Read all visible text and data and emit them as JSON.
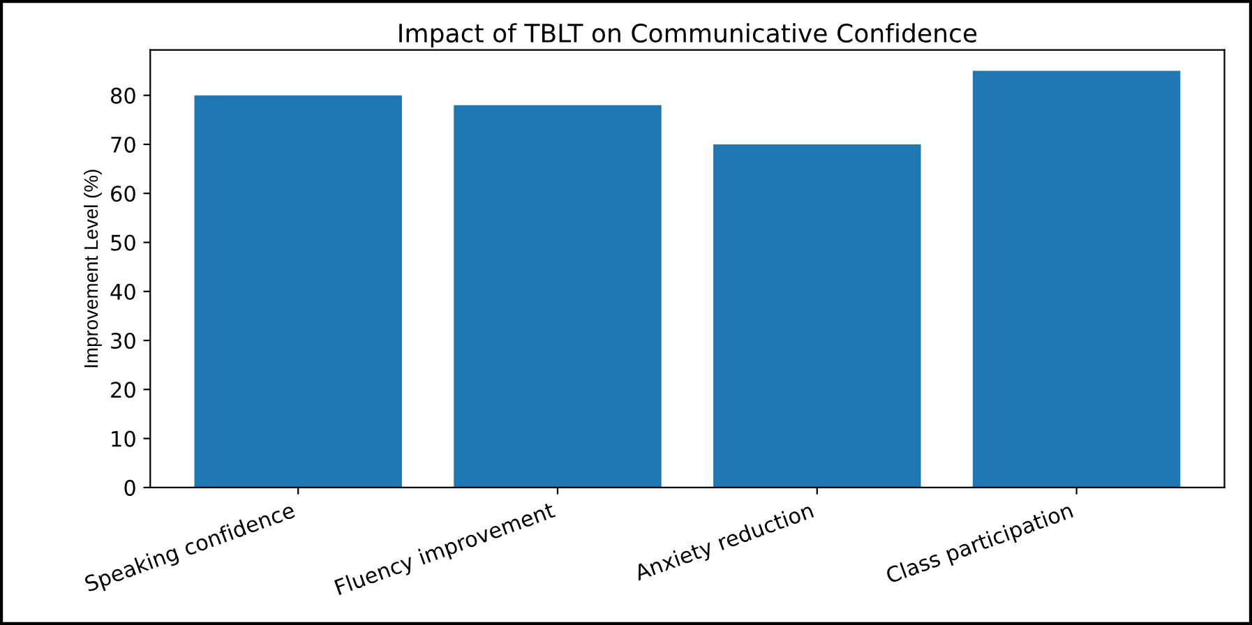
{
  "chart_data": {
    "type": "bar",
    "title": "Impact of TBLT on Communicative Confidence",
    "ylabel": "Improvement Level (%)",
    "categories": [
      "Speaking confidence",
      "Fluency improvement",
      "Anxiety reduction",
      "Class participation"
    ],
    "values": [
      80,
      78,
      70,
      85
    ],
    "color": "#1f77b4",
    "ylim": [
      0,
      89.25
    ],
    "yticks": [
      0,
      10,
      20,
      30,
      40,
      50,
      60,
      70,
      80
    ],
    "grid": false,
    "legend": false
  }
}
